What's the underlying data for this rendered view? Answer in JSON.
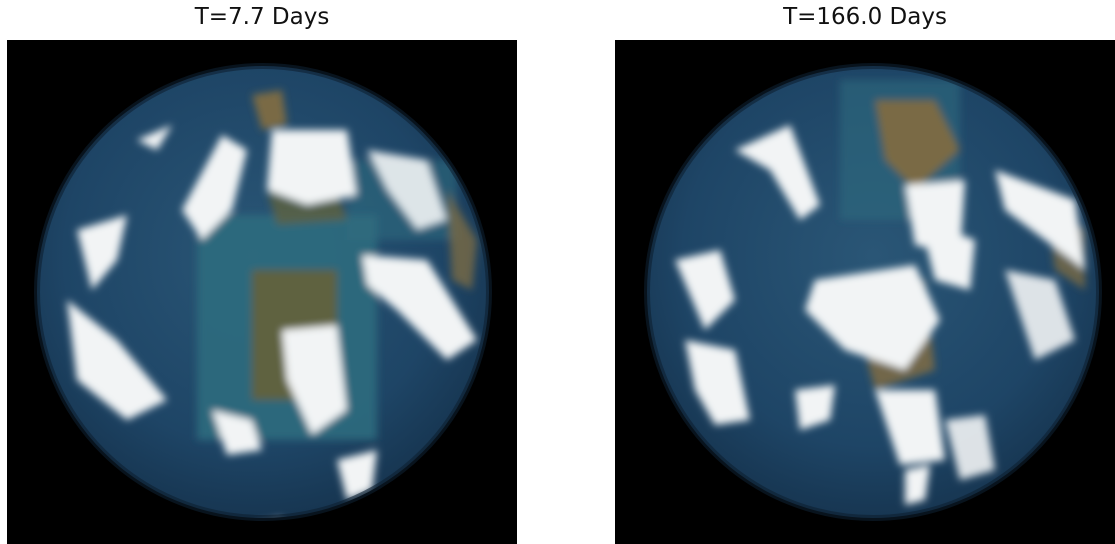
{
  "panels": [
    {
      "title": "T=7.7 Days"
    },
    {
      "title": "T=166.0 Days"
    }
  ],
  "colors": {
    "space": "#000000",
    "ocean": "#1e4566",
    "shallow_water": "#2e6b7e",
    "land": "#5e6240",
    "desert": "#7a6a45",
    "cloud": "#f2f4f5"
  }
}
